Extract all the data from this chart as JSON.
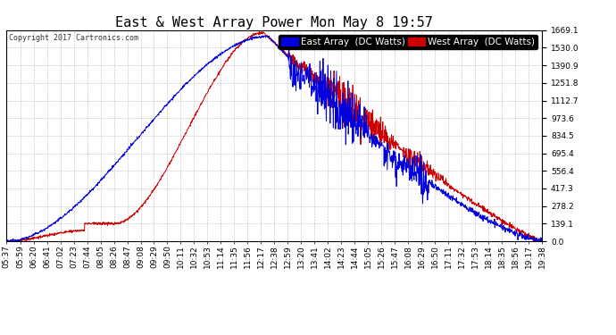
{
  "title": "East & West Array Power Mon May 8 19:57",
  "copyright": "Copyright 2017 Cartronics.com",
  "east_label": "East Array  (DC Watts)",
  "west_label": "West Array  (DC Watts)",
  "east_color": "#0000dd",
  "west_color": "#cc0000",
  "background_color": "#ffffff",
  "grid_color": "#bbbbbb",
  "yticks": [
    0.0,
    139.1,
    278.2,
    417.3,
    556.4,
    695.4,
    834.5,
    973.6,
    1112.7,
    1251.8,
    1390.9,
    1530.0,
    1669.1
  ],
  "ymax": 1669.1,
  "ymin": 0.0,
  "title_fontsize": 11,
  "legend_fontsize": 7.5,
  "tick_fontsize": 6.5,
  "xtick_labels": [
    "05:37",
    "05:59",
    "06:20",
    "06:41",
    "07:02",
    "07:23",
    "07:44",
    "08:05",
    "08:26",
    "08:47",
    "09:08",
    "09:29",
    "09:50",
    "10:11",
    "10:32",
    "10:53",
    "11:14",
    "11:35",
    "11:56",
    "12:17",
    "12:38",
    "12:59",
    "13:20",
    "13:41",
    "14:02",
    "14:23",
    "14:44",
    "15:05",
    "15:26",
    "15:47",
    "16:08",
    "16:29",
    "16:50",
    "17:11",
    "17:32",
    "17:53",
    "18:14",
    "18:35",
    "18:56",
    "19:17",
    "19:38"
  ]
}
